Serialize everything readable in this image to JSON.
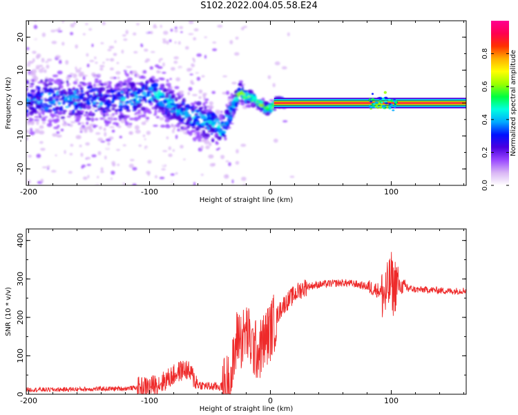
{
  "title": "S102.2022.004.05.58.E24",
  "chart_data": [
    {
      "type": "heatmap",
      "xlabel": "Height of straight line (km)",
      "ylabel": "Frequency (Hz)",
      "xlim": [
        -202,
        162
      ],
      "ylim": [
        -25,
        25
      ],
      "xticks": [
        -200,
        -100,
        0,
        100
      ],
      "yticks": [
        -20,
        -10,
        0,
        10,
        20
      ],
      "grid": false,
      "colorbar": {
        "label": "Normalized spectral amplitude",
        "range": [
          0,
          1
        ],
        "ticks": [
          0.0,
          0.2,
          0.4,
          0.6,
          0.8
        ],
        "colors": [
          "#ffffff",
          "#d9b6f5",
          "#9a48ff",
          "#4a00e0",
          "#0010ff",
          "#00aaff",
          "#00ffe0",
          "#00ff40",
          "#9aff00",
          "#ffff00",
          "#ffb000",
          "#ff3000",
          "#ff0050",
          "#ff0090"
        ]
      },
      "center_track": [
        {
          "x": -200,
          "f": 0.5,
          "s": 5.0,
          "a": 0.45
        },
        {
          "x": -160,
          "f": 1.0,
          "s": 5.0,
          "a": 0.45
        },
        {
          "x": -130,
          "f": 0.5,
          "s": 4.5,
          "a": 0.45
        },
        {
          "x": -110,
          "f": 1.5,
          "s": 4.0,
          "a": 0.5
        },
        {
          "x": -95,
          "f": 3.0,
          "s": 3.5,
          "a": 0.55
        },
        {
          "x": -80,
          "f": -1.5,
          "s": 3.5,
          "a": 0.5
        },
        {
          "x": -65,
          "f": -4.0,
          "s": 3.5,
          "a": 0.5
        },
        {
          "x": -50,
          "f": -6.0,
          "s": 3.5,
          "a": 0.5
        },
        {
          "x": -40,
          "f": -8.0,
          "s": 3.0,
          "a": 0.55
        },
        {
          "x": -33,
          "f": -3.0,
          "s": 2.5,
          "a": 0.55
        },
        {
          "x": -26,
          "f": 3.5,
          "s": 1.5,
          "a": 0.7
        },
        {
          "x": -20,
          "f": 2.0,
          "s": 1.2,
          "a": 0.75
        },
        {
          "x": -12,
          "f": 1.0,
          "s": 1.0,
          "a": 0.8
        },
        {
          "x": -5,
          "f": -1.5,
          "s": 0.9,
          "a": 0.8
        },
        {
          "x": 0,
          "f": -1.5,
          "s": 0.8,
          "a": 0.8
        },
        {
          "x": 5,
          "f": 0.0,
          "s": 0.7,
          "a": 0.95
        },
        {
          "x": 160,
          "f": 0.0,
          "s": 0.7,
          "a": 0.95
        }
      ]
    },
    {
      "type": "line",
      "xlabel": "Height of straight line (km)",
      "ylabel": "SNR (10 * v/v)",
      "xlim": [
        -202,
        162
      ],
      "ylim": [
        0,
        430
      ],
      "xticks": [
        -200,
        -100,
        0,
        100
      ],
      "yticks": [
        0,
        100,
        200,
        300,
        400
      ],
      "grid": false,
      "color": "#ee2a2a",
      "series": [
        {
          "x": [
            -200,
            -180,
            -160,
            -140,
            -120,
            -100,
            -90,
            -80,
            -75,
            -70,
            -65,
            -60,
            -50,
            -40,
            -33,
            -30,
            -28,
            -26,
            -24,
            -22,
            -20,
            -18,
            -16,
            -14,
            -12,
            -10,
            -8,
            -5,
            0,
            5,
            10,
            15,
            20,
            25,
            30,
            40,
            50,
            60,
            70,
            80,
            85,
            90,
            95,
            98,
            100,
            102,
            104,
            106,
            110,
            120,
            130,
            140,
            150,
            162
          ],
          "y": [
            12,
            12,
            13,
            14,
            15,
            20,
            30,
            50,
            60,
            65,
            50,
            25,
            20,
            20,
            35,
            90,
            140,
            160,
            140,
            150,
            165,
            150,
            130,
            120,
            115,
            110,
            120,
            140,
            165,
            200,
            230,
            245,
            260,
            272,
            280,
            285,
            288,
            290,
            287,
            280,
            275,
            270,
            255,
            280,
            300,
            270,
            295,
            280,
            280,
            272,
            272,
            270,
            268,
            270
          ]
        }
      ]
    }
  ]
}
